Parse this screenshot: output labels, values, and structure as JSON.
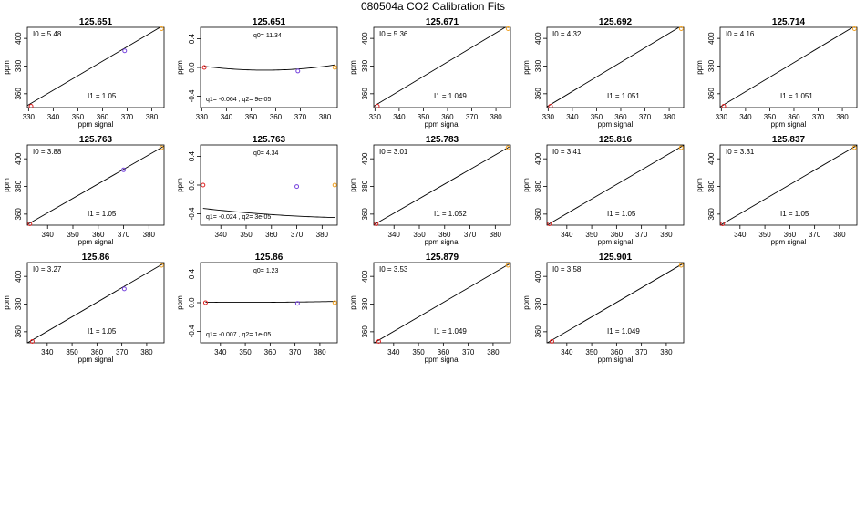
{
  "page_title": "080504a   CO2 Calibration Fits",
  "colors": {
    "low_point": "#dd2222",
    "mid_point": "#7744dd",
    "high_point": "#f0a020",
    "curve": "#000000"
  },
  "chart_data": [
    {
      "type": "scatter",
      "fit": "linear",
      "title": "125.651",
      "xlabel": "ppm signal",
      "ylabel": "ppm",
      "xlim": [
        329.5,
        385
      ],
      "ylim": [
        350,
        408
      ],
      "xticks": [
        330,
        340,
        350,
        360,
        370,
        380
      ],
      "yticks": [
        360,
        380,
        400
      ],
      "points": [
        {
          "x": 331,
          "y": 351,
          "cls": "low"
        },
        {
          "x": 369,
          "y": 391,
          "cls": "mid"
        },
        {
          "x": 384,
          "y": 407,
          "cls": "high"
        }
      ],
      "line": {
        "intercept": 5.48,
        "slope": 1.05
      },
      "annotations": [
        "I0 =  5.48",
        "I1 =  1.05"
      ]
    },
    {
      "type": "scatter",
      "fit": "quadratic",
      "title": "125.651",
      "xlabel": "",
      "ylabel": "ppm",
      "xlim": [
        329.5,
        385
      ],
      "ylim": [
        -0.56,
        0.56
      ],
      "xticks": [
        330,
        340,
        350,
        360,
        370,
        380
      ],
      "yticks": [
        -0.4,
        0.0,
        0.4
      ],
      "points": [
        {
          "x": 331,
          "y": 0.0,
          "cls": "low"
        },
        {
          "x": 369,
          "y": -0.05,
          "cls": "mid"
        },
        {
          "x": 384,
          "y": 0.0,
          "cls": "high"
        }
      ],
      "curve": {
        "q0": 11.34,
        "q1": -0.064,
        "q2": 9e-05
      },
      "annotations": [
        "q0= 11.34",
        "q1= -0.064 , q2= 9e-05"
      ]
    },
    {
      "type": "scatter",
      "fit": "linear",
      "title": "125.671",
      "xlabel": "ppm signal",
      "ylabel": "ppm",
      "xlim": [
        329.5,
        386
      ],
      "ylim": [
        350,
        408
      ],
      "xticks": [
        330,
        340,
        350,
        360,
        370,
        380
      ],
      "yticks": [
        360,
        380,
        400
      ],
      "points": [
        {
          "x": 331,
          "y": 351,
          "cls": "low"
        },
        {
          "x": 385,
          "y": 407,
          "cls": "high"
        }
      ],
      "line": {
        "intercept": 5.36,
        "slope": 1.049
      },
      "annotations": [
        "I0 =  5.36",
        "I1 =  1.049"
      ]
    },
    {
      "type": "scatter",
      "fit": "linear",
      "title": "125.692",
      "xlabel": "ppm signal",
      "ylabel": "ppm",
      "xlim": [
        329.5,
        386
      ],
      "ylim": [
        350,
        408
      ],
      "xticks": [
        330,
        340,
        350,
        360,
        370,
        380
      ],
      "yticks": [
        360,
        380,
        400
      ],
      "points": [
        {
          "x": 331,
          "y": 351,
          "cls": "low"
        },
        {
          "x": 385,
          "y": 407,
          "cls": "high"
        }
      ],
      "line": {
        "intercept": 4.32,
        "slope": 1.051
      },
      "annotations": [
        "I0 =  4.32",
        "I1 =  1.051"
      ]
    },
    {
      "type": "scatter",
      "fit": "linear",
      "title": "125.714",
      "xlabel": "ppm signal",
      "ylabel": "ppm",
      "xlim": [
        329.5,
        386
      ],
      "ylim": [
        350,
        408
      ],
      "xticks": [
        330,
        340,
        350,
        360,
        370,
        380
      ],
      "yticks": [
        360,
        380,
        400
      ],
      "points": [
        {
          "x": 331,
          "y": 351,
          "cls": "low"
        },
        {
          "x": 385,
          "y": 407,
          "cls": "high"
        }
      ],
      "line": {
        "intercept": 4.16,
        "slope": 1.051
      },
      "annotations": [
        "I0 =  4.16",
        "I1 =  1.051"
      ]
    },
    {
      "type": "scatter",
      "fit": "linear",
      "title": "125.763",
      "xlabel": "ppm signal",
      "ylabel": "ppm",
      "xlim": [
        332,
        386
      ],
      "ylim": [
        352,
        410
      ],
      "xticks": [
        340,
        350,
        360,
        370,
        380
      ],
      "yticks": [
        360,
        380,
        400
      ],
      "points": [
        {
          "x": 333,
          "y": 353,
          "cls": "low"
        },
        {
          "x": 370,
          "y": 392,
          "cls": "mid"
        },
        {
          "x": 385,
          "y": 408,
          "cls": "high"
        }
      ],
      "line": {
        "intercept": 3.88,
        "slope": 1.05
      },
      "annotations": [
        "I0 =  3.88",
        "I1 =  1.05"
      ]
    },
    {
      "type": "scatter",
      "fit": "quadratic",
      "title": "125.763",
      "xlabel": "",
      "ylabel": "ppm",
      "xlim": [
        332,
        386
      ],
      "ylim": [
        -0.56,
        0.56
      ],
      "xticks": [
        340,
        350,
        360,
        370,
        380
      ],
      "yticks": [
        -0.4,
        0.0,
        0.4
      ],
      "points": [
        {
          "x": 333,
          "y": 0.0,
          "cls": "low"
        },
        {
          "x": 370,
          "y": -0.02,
          "cls": "mid"
        },
        {
          "x": 385,
          "y": 0.0,
          "cls": "high"
        }
      ],
      "curve": {
        "q0": 4.34,
        "q1": -0.024,
        "q2": 3e-05
      },
      "annotations": [
        "q0= 4.34",
        "q1= -0.024 , q2= 3e-05"
      ]
    },
    {
      "type": "scatter",
      "fit": "linear",
      "title": "125.783",
      "xlabel": "ppm signal",
      "ylabel": "ppm",
      "xlim": [
        332,
        386
      ],
      "ylim": [
        352,
        410
      ],
      "xticks": [
        340,
        350,
        360,
        370,
        380
      ],
      "yticks": [
        360,
        380,
        400
      ],
      "points": [
        {
          "x": 333,
          "y": 353,
          "cls": "low"
        },
        {
          "x": 385,
          "y": 408,
          "cls": "high"
        }
      ],
      "line": {
        "intercept": 3.01,
        "slope": 1.052
      },
      "annotations": [
        "I0 =  3.01",
        "I1 =  1.052"
      ]
    },
    {
      "type": "scatter",
      "fit": "linear",
      "title": "125.816",
      "xlabel": "ppm signal",
      "ylabel": "ppm",
      "xlim": [
        332,
        387
      ],
      "ylim": [
        352,
        410
      ],
      "xticks": [
        340,
        350,
        360,
        370,
        380
      ],
      "yticks": [
        360,
        380,
        400
      ],
      "points": [
        {
          "x": 333,
          "y": 353,
          "cls": "low"
        },
        {
          "x": 386,
          "y": 408,
          "cls": "high"
        }
      ],
      "line": {
        "intercept": 3.41,
        "slope": 1.05
      },
      "annotations": [
        "I0 =  3.41",
        "I1 =  1.05"
      ]
    },
    {
      "type": "scatter",
      "fit": "linear",
      "title": "125.837",
      "xlabel": "ppm signal",
      "ylabel": "ppm",
      "xlim": [
        332,
        387
      ],
      "ylim": [
        352,
        410
      ],
      "xticks": [
        340,
        350,
        360,
        370,
        380
      ],
      "yticks": [
        360,
        380,
        400
      ],
      "points": [
        {
          "x": 333,
          "y": 353,
          "cls": "low"
        },
        {
          "x": 386,
          "y": 408,
          "cls": "high"
        }
      ],
      "line": {
        "intercept": 3.31,
        "slope": 1.05
      },
      "annotations": [
        "I0 =  3.31",
        "I1 =  1.05"
      ]
    },
    {
      "type": "scatter",
      "fit": "linear",
      "title": "125.86",
      "xlabel": "ppm signal",
      "ylabel": "ppm",
      "xlim": [
        332,
        387
      ],
      "ylim": [
        352,
        410
      ],
      "xticks": [
        340,
        350,
        360,
        370,
        380
      ],
      "yticks": [
        360,
        380,
        400
      ],
      "points": [
        {
          "x": 334,
          "y": 353,
          "cls": "low"
        },
        {
          "x": 371,
          "y": 391,
          "cls": "mid"
        },
        {
          "x": 386,
          "y": 408,
          "cls": "high"
        }
      ],
      "line": {
        "intercept": 3.27,
        "slope": 1.05
      },
      "annotations": [
        "I0 =  3.27",
        "I1 =  1.05"
      ]
    },
    {
      "type": "scatter",
      "fit": "quadratic",
      "title": "125.86",
      "xlabel": "",
      "ylabel": "ppm",
      "xlim": [
        332,
        387
      ],
      "ylim": [
        -0.56,
        0.56
      ],
      "xticks": [
        340,
        350,
        360,
        370,
        380
      ],
      "yticks": [
        -0.4,
        0.0,
        0.4
      ],
      "points": [
        {
          "x": 334,
          "y": 0.0,
          "cls": "low"
        },
        {
          "x": 371,
          "y": -0.01,
          "cls": "mid"
        },
        {
          "x": 386,
          "y": 0.0,
          "cls": "high"
        }
      ],
      "curve": {
        "q0": 1.23,
        "q1": -0.007,
        "q2": 1e-05
      },
      "annotations": [
        "q0= 1.23",
        "q1= -0.007 , q2= 1e-05"
      ]
    },
    {
      "type": "scatter",
      "fit": "linear",
      "title": "125.879",
      "xlabel": "ppm signal",
      "ylabel": "ppm",
      "xlim": [
        332,
        387
      ],
      "ylim": [
        352,
        410
      ],
      "xticks": [
        340,
        350,
        360,
        370,
        380
      ],
      "yticks": [
        360,
        380,
        400
      ],
      "points": [
        {
          "x": 334,
          "y": 353,
          "cls": "low"
        },
        {
          "x": 386,
          "y": 408,
          "cls": "high"
        }
      ],
      "line": {
        "intercept": 3.53,
        "slope": 1.049
      },
      "annotations": [
        "I0 =  3.53",
        "I1 =  1.049"
      ]
    },
    {
      "type": "scatter",
      "fit": "linear",
      "title": "125.901",
      "xlabel": "ppm signal",
      "ylabel": "ppm",
      "xlim": [
        332,
        387
      ],
      "ylim": [
        352,
        410
      ],
      "xticks": [
        340,
        350,
        360,
        370,
        380
      ],
      "yticks": [
        360,
        380,
        400
      ],
      "points": [
        {
          "x": 334,
          "y": 353,
          "cls": "low"
        },
        {
          "x": 386,
          "y": 408,
          "cls": "high"
        }
      ],
      "line": {
        "intercept": 3.58,
        "slope": 1.049
      },
      "annotations": [
        "I0 =  3.58",
        "I1 =  1.049"
      ]
    }
  ]
}
